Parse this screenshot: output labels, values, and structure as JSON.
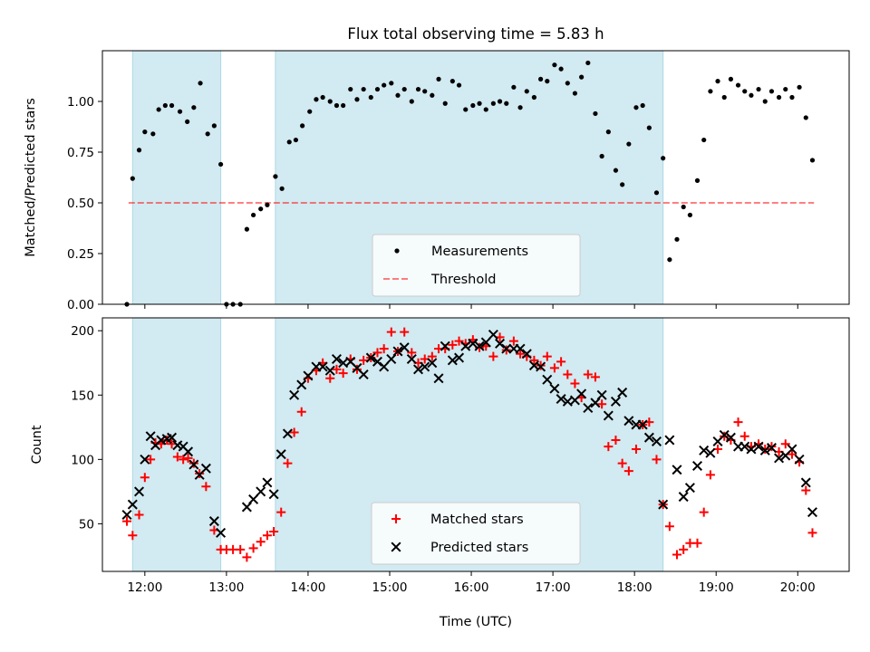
{
  "title": "Flux total observing time = 5.83 h",
  "colors": {
    "shade": "#add8e6",
    "measurement": "#000000",
    "threshold": "#ff0000",
    "matched": "#ff0000",
    "predicted": "#000000"
  },
  "chart_data": [
    {
      "type": "scatter",
      "ylabel": "Matched/Predicted stars",
      "xlim": [
        11.48,
        20.63
      ],
      "ylim": [
        0.0,
        1.25
      ],
      "x_ticks": [
        12,
        13,
        14,
        15,
        16,
        17,
        18,
        19,
        20
      ],
      "x_tick_labels": [
        "",
        "",
        "",
        "",
        "",
        "",
        "",
        "",
        ""
      ],
      "y_ticks": [
        0.0,
        0.25,
        0.5,
        0.75,
        1.0
      ],
      "y_tick_labels": [
        "0.00",
        "0.25",
        "0.50",
        "0.75",
        "1.00"
      ],
      "shaded_spans": [
        [
          11.85,
          12.93
        ],
        [
          13.6,
          18.35
        ]
      ],
      "legend": {
        "placement": "lower center",
        "entries": [
          "Measurements",
          "Threshold"
        ]
      },
      "threshold": {
        "name": "Threshold",
        "value": 0.5,
        "x": [
          11.8,
          20.2
        ]
      },
      "series": [
        {
          "name": "Measurements",
          "x": [
            11.78,
            11.85,
            11.93,
            12.0,
            12.1,
            12.17,
            12.25,
            12.33,
            12.43,
            12.52,
            12.6,
            12.68,
            12.77,
            12.85,
            12.93,
            13.0,
            13.08,
            13.17,
            13.25,
            13.33,
            13.42,
            13.5,
            13.6,
            13.68,
            13.77,
            13.85,
            13.93,
            14.02,
            14.1,
            14.18,
            14.27,
            14.35,
            14.43,
            14.52,
            14.6,
            14.68,
            14.77,
            14.85,
            14.93,
            15.02,
            15.1,
            15.18,
            15.27,
            15.35,
            15.43,
            15.52,
            15.6,
            15.68,
            15.77,
            15.85,
            15.93,
            16.02,
            16.1,
            16.18,
            16.27,
            16.35,
            16.43,
            16.52,
            16.6,
            16.68,
            16.77,
            16.85,
            16.93,
            17.02,
            17.1,
            17.18,
            17.27,
            17.35,
            17.43,
            17.52,
            17.6,
            17.68,
            17.77,
            17.85,
            17.93,
            18.02,
            18.1,
            18.18,
            18.27,
            18.35,
            18.43,
            18.52,
            18.6,
            18.68,
            18.77,
            18.85,
            18.93,
            19.02,
            19.1,
            19.18,
            19.27,
            19.35,
            19.43,
            19.52,
            19.6,
            19.68,
            19.77,
            19.85,
            19.93,
            20.02,
            20.1,
            20.18
          ],
          "y": [
            0.0,
            0.62,
            0.76,
            0.85,
            0.84,
            0.96,
            0.98,
            0.98,
            0.95,
            0.9,
            0.97,
            1.09,
            0.84,
            0.88,
            0.69,
            0.0,
            0.0,
            0.0,
            0.37,
            0.44,
            0.47,
            0.49,
            0.63,
            0.57,
            0.8,
            0.81,
            0.88,
            0.95,
            1.01,
            1.02,
            1.0,
            0.98,
            0.98,
            1.06,
            1.01,
            1.06,
            1.02,
            1.06,
            1.08,
            1.09,
            1.03,
            1.06,
            1.0,
            1.06,
            1.05,
            1.03,
            1.11,
            0.99,
            1.1,
            1.08,
            0.96,
            0.98,
            0.99,
            0.96,
            0.99,
            1.0,
            0.99,
            1.07,
            0.97,
            1.05,
            1.02,
            1.11,
            1.1,
            1.18,
            1.16,
            1.09,
            1.04,
            1.12,
            1.19,
            0.94,
            0.73,
            0.85,
            0.66,
            0.59,
            0.79,
            0.97,
            0.98,
            0.87,
            0.55,
            0.72,
            0.22,
            0.32,
            0.48,
            0.44,
            0.61,
            0.81,
            1.05,
            1.1,
            1.02,
            1.11,
            1.08,
            1.05,
            1.03,
            1.06,
            1.0,
            1.05,
            1.02,
            1.06,
            1.02,
            1.07,
            0.92,
            0.71
          ]
        }
      ]
    },
    {
      "type": "scatter",
      "xlabel": "Time (UTC)",
      "ylabel": "Count",
      "xlim": [
        11.48,
        20.63
      ],
      "ylim": [
        13,
        210
      ],
      "x_ticks": [
        12,
        13,
        14,
        15,
        16,
        17,
        18,
        19,
        20
      ],
      "x_tick_labels": [
        "12:00",
        "13:00",
        "14:00",
        "15:00",
        "16:00",
        "17:00",
        "18:00",
        "19:00",
        "20:00"
      ],
      "y_ticks": [
        50,
        100,
        150,
        200
      ],
      "y_tick_labels": [
        "50",
        "100",
        "150",
        "200"
      ],
      "shaded_spans": [
        [
          11.85,
          12.93
        ],
        [
          13.6,
          18.35
        ]
      ],
      "legend": {
        "placement": "lower center",
        "entries": [
          "Matched stars",
          "Predicted stars"
        ]
      },
      "series": [
        {
          "name": "Matched stars",
          "x": [
            11.78,
            11.85,
            11.93,
            12.0,
            12.07,
            12.13,
            12.2,
            12.27,
            12.33,
            12.4,
            12.47,
            12.53,
            12.6,
            12.67,
            12.75,
            12.85,
            12.93,
            13.0,
            13.08,
            13.17,
            13.25,
            13.33,
            13.42,
            13.5,
            13.58,
            13.67,
            13.75,
            13.83,
            13.92,
            14.0,
            14.1,
            14.18,
            14.27,
            14.35,
            14.43,
            14.52,
            14.6,
            14.68,
            14.77,
            14.85,
            14.93,
            15.02,
            15.1,
            15.18,
            15.27,
            15.35,
            15.43,
            15.52,
            15.6,
            15.68,
            15.77,
            15.85,
            15.93,
            16.02,
            16.1,
            16.18,
            16.27,
            16.35,
            16.43,
            16.52,
            16.6,
            16.68,
            16.77,
            16.85,
            16.93,
            17.02,
            17.1,
            17.18,
            17.27,
            17.35,
            17.43,
            17.52,
            17.6,
            17.68,
            17.77,
            17.85,
            17.93,
            18.02,
            18.1,
            18.18,
            18.27,
            18.35,
            18.43,
            18.52,
            18.6,
            18.68,
            18.77,
            18.85,
            18.93,
            19.02,
            19.1,
            19.18,
            19.27,
            19.35,
            19.43,
            19.52,
            19.6,
            19.68,
            19.77,
            19.85,
            19.93,
            20.02,
            20.1,
            20.18
          ],
          "y": [
            52,
            41,
            57,
            86,
            100,
            113,
            112,
            115,
            112,
            102,
            100,
            101,
            97,
            89,
            79,
            45,
            30,
            30,
            30,
            30,
            24,
            31,
            36,
            41,
            44,
            59,
            97,
            121,
            137,
            163,
            169,
            175,
            163,
            170,
            167,
            178,
            170,
            177,
            179,
            183,
            186,
            199,
            184,
            199,
            183,
            175,
            178,
            180,
            186,
            186,
            189,
            192,
            190,
            193,
            187,
            188,
            180,
            195,
            185,
            192,
            182,
            180,
            177,
            173,
            180,
            171,
            176,
            166,
            159,
            148,
            166,
            164,
            143,
            110,
            115,
            97,
            91,
            108,
            127,
            129,
            100,
            65,
            48,
            26,
            30,
            35,
            35,
            59,
            88,
            108,
            118,
            115,
            129,
            118,
            110,
            112,
            108,
            110,
            106,
            112,
            104,
            98,
            76,
            43
          ]
        },
        {
          "name": "Predicted stars",
          "x": [
            11.78,
            11.85,
            11.93,
            12.0,
            12.07,
            12.13,
            12.2,
            12.27,
            12.33,
            12.4,
            12.47,
            12.53,
            12.6,
            12.67,
            12.75,
            12.85,
            12.93,
            13.25,
            13.33,
            13.42,
            13.5,
            13.58,
            13.67,
            13.75,
            13.83,
            13.92,
            14.0,
            14.1,
            14.18,
            14.27,
            14.35,
            14.43,
            14.52,
            14.6,
            14.68,
            14.77,
            14.85,
            14.93,
            15.02,
            15.1,
            15.18,
            15.27,
            15.35,
            15.43,
            15.52,
            15.6,
            15.68,
            15.77,
            15.85,
            15.93,
            16.02,
            16.1,
            16.18,
            16.27,
            16.35,
            16.43,
            16.52,
            16.6,
            16.68,
            16.77,
            16.85,
            16.93,
            17.02,
            17.1,
            17.18,
            17.27,
            17.35,
            17.43,
            17.52,
            17.6,
            17.68,
            17.77,
            17.85,
            17.93,
            18.02,
            18.1,
            18.18,
            18.27,
            18.35,
            18.43,
            18.52,
            18.6,
            18.68,
            18.77,
            18.85,
            18.93,
            19.02,
            19.1,
            19.18,
            19.27,
            19.35,
            19.43,
            19.52,
            19.6,
            19.68,
            19.77,
            19.85,
            19.93,
            20.02,
            20.1,
            20.18
          ],
          "y": [
            57,
            65,
            75,
            100,
            118,
            111,
            115,
            116,
            117,
            111,
            110,
            106,
            96,
            88,
            93,
            52,
            43,
            63,
            69,
            75,
            82,
            73,
            104,
            120,
            150,
            158,
            165,
            172,
            172,
            169,
            178,
            175,
            176,
            171,
            166,
            179,
            176,
            172,
            178,
            184,
            187,
            178,
            170,
            172,
            175,
            163,
            188,
            177,
            179,
            188,
            190,
            188,
            191,
            197,
            190,
            186,
            186,
            186,
            182,
            173,
            172,
            162,
            155,
            147,
            145,
            146,
            151,
            140,
            144,
            150,
            134,
            145,
            152,
            130,
            127,
            127,
            117,
            114,
            65,
            115,
            92,
            71,
            78,
            95,
            107,
            105,
            114,
            119,
            117,
            110,
            110,
            108,
            110,
            107,
            109,
            101,
            103,
            108,
            100,
            82,
            59
          ]
        }
      ]
    }
  ]
}
